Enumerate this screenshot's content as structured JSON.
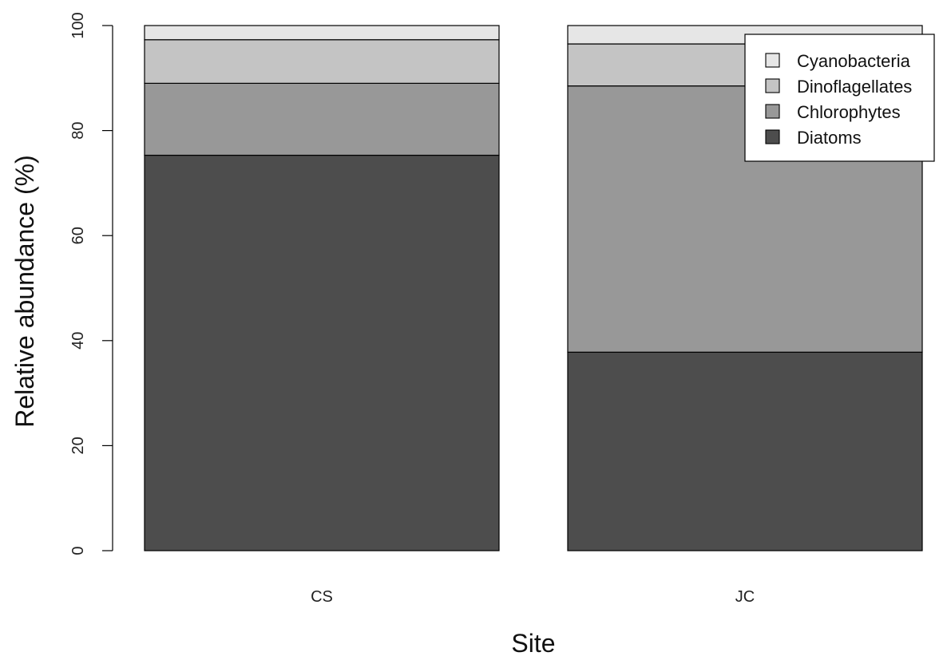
{
  "chart_data": {
    "type": "bar",
    "stacked": true,
    "title": "",
    "xlabel": "Site",
    "ylabel": "Relative abundance (%)",
    "ylim": [
      0,
      100
    ],
    "yticks": [
      0,
      20,
      40,
      60,
      80,
      100
    ],
    "categories": [
      "CS",
      "JC"
    ],
    "series": [
      {
        "name": "Diatoms",
        "values": [
          75.3,
          37.8
        ],
        "color": "#4d4d4d"
      },
      {
        "name": "Chlorophytes",
        "values": [
          13.7,
          50.7
        ],
        "color": "#989898"
      },
      {
        "name": "Dinoflagellates",
        "values": [
          8.3,
          8.0
        ],
        "color": "#c4c4c4"
      },
      {
        "name": "Cyanobacteria",
        "values": [
          2.7,
          3.5
        ],
        "color": "#e6e6e6"
      }
    ],
    "legend": {
      "position": "top-right",
      "order": [
        "Cyanobacteria",
        "Dinoflagellates",
        "Chlorophytes",
        "Diatoms"
      ]
    },
    "grid": false
  }
}
